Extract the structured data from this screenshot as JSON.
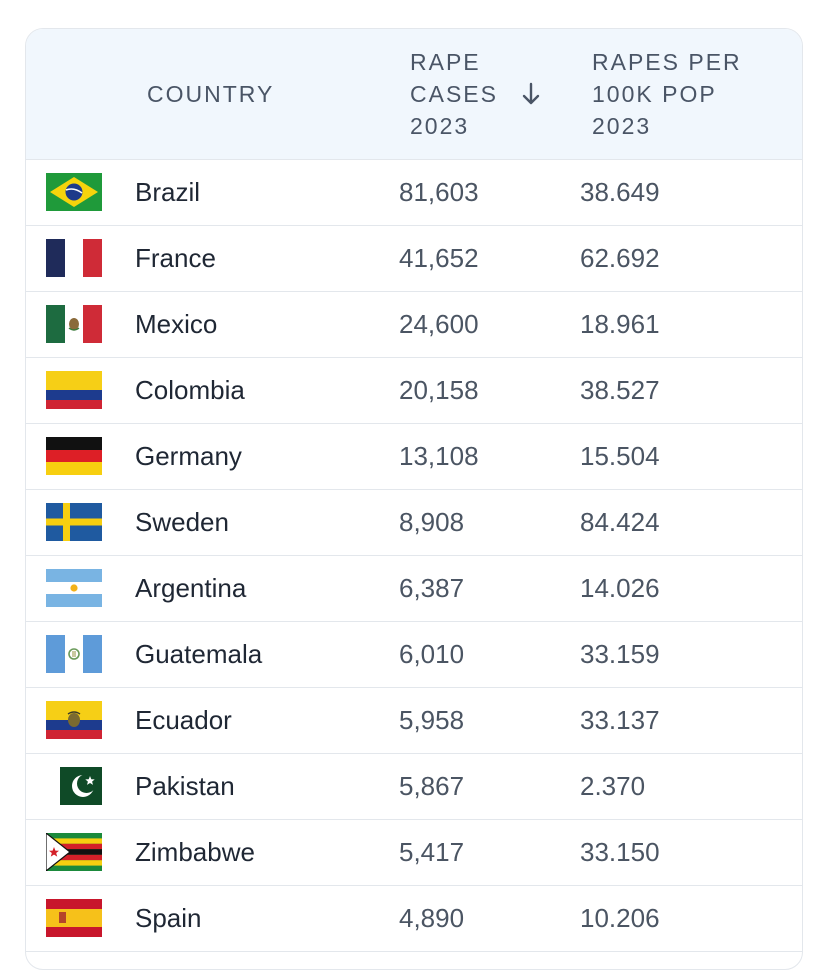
{
  "table": {
    "headers": {
      "country": "COUNTRY",
      "cases": [
        "RAPE",
        "CASES",
        "2023"
      ],
      "rate": [
        "RAPES PER",
        "100K POP",
        "2023"
      ]
    },
    "sort_icon": "arrow-down-icon",
    "rows": [
      {
        "country": "Brazil",
        "flag": "brazil-flag-icon",
        "cases": "81,603",
        "rate": "38.649"
      },
      {
        "country": "France",
        "flag": "france-flag-icon",
        "cases": "41,652",
        "rate": "62.692"
      },
      {
        "country": "Mexico",
        "flag": "mexico-flag-icon",
        "cases": "24,600",
        "rate": "18.961"
      },
      {
        "country": "Colombia",
        "flag": "colombia-flag-icon",
        "cases": "20,158",
        "rate": "38.527"
      },
      {
        "country": "Germany",
        "flag": "germany-flag-icon",
        "cases": "13,108",
        "rate": "15.504"
      },
      {
        "country": "Sweden",
        "flag": "sweden-flag-icon",
        "cases": "8,908",
        "rate": "84.424"
      },
      {
        "country": "Argentina",
        "flag": "argentina-flag-icon",
        "cases": "6,387",
        "rate": "14.026"
      },
      {
        "country": "Guatemala",
        "flag": "guatemala-flag-icon",
        "cases": "6,010",
        "rate": "33.159"
      },
      {
        "country": "Ecuador",
        "flag": "ecuador-flag-icon",
        "cases": "5,958",
        "rate": "33.137"
      },
      {
        "country": "Pakistan",
        "flag": "pakistan-flag-icon",
        "cases": "5,867",
        "rate": "2.370"
      },
      {
        "country": "Zimbabwe",
        "flag": "zimbabwe-flag-icon",
        "cases": "5,417",
        "rate": "33.150"
      },
      {
        "country": "Spain",
        "flag": "spain-flag-icon",
        "cases": "4,890",
        "rate": "10.206"
      }
    ]
  }
}
